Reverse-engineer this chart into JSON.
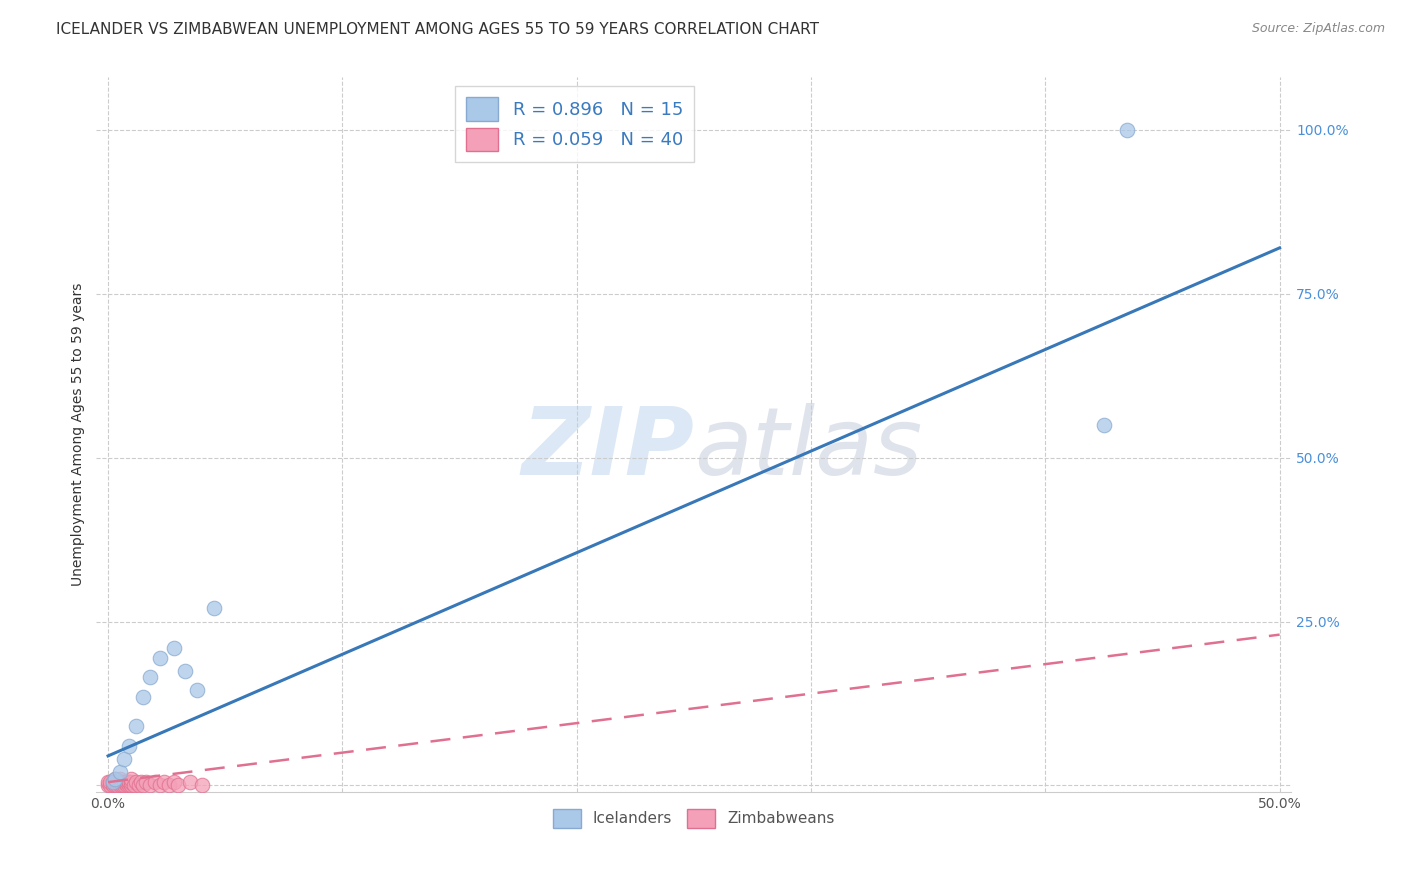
{
  "title": "ICELANDER VS ZIMBABWEAN UNEMPLOYMENT AMONG AGES 55 TO 59 YEARS CORRELATION CHART",
  "source": "Source: ZipAtlas.com",
  "ylabel": "Unemployment Among Ages 55 to 59 years",
  "xlabel": "",
  "xlim": [
    -0.005,
    0.505
  ],
  "ylim": [
    -0.01,
    1.08
  ],
  "xticks": [
    0.0,
    0.1,
    0.2,
    0.3,
    0.4,
    0.5
  ],
  "xticklabels": [
    "0.0%",
    "",
    "",
    "",
    "",
    "50.0%"
  ],
  "yticks": [
    0.0,
    0.25,
    0.5,
    0.75,
    1.0
  ],
  "yticklabels": [
    "",
    "25.0%",
    "50.0%",
    "75.0%",
    "100.0%"
  ],
  "background_color": "#ffffff",
  "grid_color": "#cccccc",
  "watermark": "ZIPatlas",
  "icelanders_x": [
    0.002,
    0.003,
    0.005,
    0.007,
    0.009,
    0.012,
    0.015,
    0.018,
    0.022,
    0.028,
    0.033,
    0.038,
    0.045,
    0.425,
    0.435
  ],
  "icelanders_y": [
    0.005,
    0.01,
    0.02,
    0.04,
    0.06,
    0.09,
    0.135,
    0.165,
    0.195,
    0.21,
    0.175,
    0.145,
    0.27,
    0.55,
    1.0
  ],
  "icelanders_color": "#aac8e8",
  "icelanders_edge_color": "#88aad0",
  "zimbabweans_x": [
    0.0,
    0.0,
    0.001,
    0.001,
    0.002,
    0.002,
    0.003,
    0.003,
    0.003,
    0.004,
    0.004,
    0.005,
    0.005,
    0.005,
    0.006,
    0.006,
    0.007,
    0.007,
    0.008,
    0.008,
    0.009,
    0.009,
    0.01,
    0.01,
    0.01,
    0.011,
    0.012,
    0.013,
    0.014,
    0.015,
    0.016,
    0.018,
    0.02,
    0.022,
    0.024,
    0.026,
    0.028,
    0.03,
    0.035,
    0.04
  ],
  "zimbabweans_y": [
    0.0,
    0.005,
    0.0,
    0.005,
    0.0,
    0.005,
    0.0,
    0.005,
    0.01,
    0.0,
    0.005,
    0.0,
    0.005,
    0.01,
    0.0,
    0.005,
    0.0,
    0.005,
    0.0,
    0.005,
    0.0,
    0.005,
    0.0,
    0.005,
    0.01,
    0.0,
    0.005,
    0.0,
    0.005,
    0.0,
    0.005,
    0.0,
    0.005,
    0.0,
    0.005,
    0.0,
    0.005,
    0.0,
    0.005,
    0.0
  ],
  "zimbabweans_color": "#f4a0b8",
  "zimbabweans_edge_color": "#e07090",
  "icelanders_R": 0.896,
  "icelanders_N": 15,
  "zimbabweans_R": 0.059,
  "zimbabweans_N": 40,
  "blue_line_x": [
    0.0,
    0.5
  ],
  "blue_line_y": [
    0.045,
    0.82
  ],
  "pink_line_x": [
    0.0,
    0.5
  ],
  "pink_line_y": [
    0.005,
    0.23
  ],
  "blue_line_color": "#3878b8",
  "pink_line_color": "#e07090",
  "title_fontsize": 11,
  "axis_label_fontsize": 10,
  "tick_fontsize": 10,
  "legend_fontsize": 13,
  "source_fontsize": 9,
  "scatter_size": 110
}
